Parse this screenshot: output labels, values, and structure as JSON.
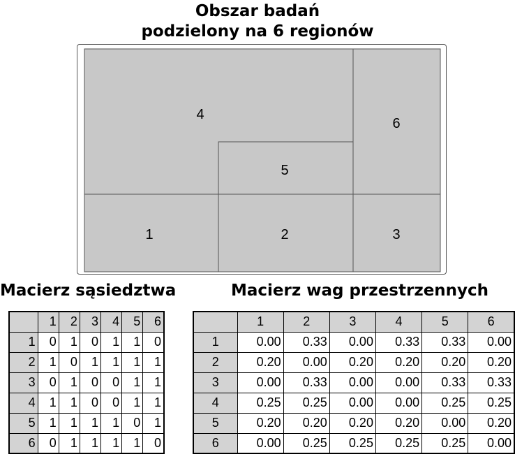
{
  "title": {
    "line1": "Obszar badań",
    "line2": "podzielony na 6 regionów"
  },
  "regions": [
    {
      "id": "1",
      "label": "1",
      "color": "#c8c8c8"
    },
    {
      "id": "2",
      "label": "2",
      "color": "#c8c8c8"
    },
    {
      "id": "3",
      "label": "3",
      "color": "#c8c8c8"
    },
    {
      "id": "4",
      "label": "4",
      "color": "#c8c8c8"
    },
    {
      "id": "5",
      "label": "5",
      "color": "#c8c8c8"
    },
    {
      "id": "6",
      "label": "6",
      "color": "#c8c8c8"
    }
  ],
  "adjacency": {
    "title": "Macierz sąsiedztwa",
    "headers": [
      "1",
      "2",
      "3",
      "4",
      "5",
      "6"
    ],
    "rows": [
      {
        "label": "1",
        "values": [
          "0",
          "1",
          "0",
          "1",
          "1",
          "0"
        ]
      },
      {
        "label": "2",
        "values": [
          "1",
          "0",
          "1",
          "1",
          "1",
          "1"
        ]
      },
      {
        "label": "3",
        "values": [
          "0",
          "1",
          "0",
          "0",
          "1",
          "1"
        ]
      },
      {
        "label": "4",
        "values": [
          "1",
          "1",
          "0",
          "0",
          "1",
          "1"
        ]
      },
      {
        "label": "5",
        "values": [
          "1",
          "1",
          "1",
          "1",
          "0",
          "1"
        ]
      },
      {
        "label": "6",
        "values": [
          "0",
          "1",
          "1",
          "1",
          "1",
          "0"
        ]
      }
    ]
  },
  "weights": {
    "title": "Macierz wag przestrzennych",
    "headers": [
      "1",
      "2",
      "3",
      "4",
      "5",
      "6"
    ],
    "rows": [
      {
        "label": "1",
        "values": [
          "0.00",
          "0.33",
          "0.00",
          "0.33",
          "0.33",
          "0.00"
        ]
      },
      {
        "label": "2",
        "values": [
          "0.20",
          "0.00",
          "0.20",
          "0.20",
          "0.20",
          "0.20"
        ]
      },
      {
        "label": "3",
        "values": [
          "0.00",
          "0.33",
          "0.00",
          "0.00",
          "0.33",
          "0.33"
        ]
      },
      {
        "label": "4",
        "values": [
          "0.25",
          "0.25",
          "0.00",
          "0.00",
          "0.25",
          "0.25"
        ]
      },
      {
        "label": "5",
        "values": [
          "0.20",
          "0.20",
          "0.20",
          "0.20",
          "0.00",
          "0.20"
        ]
      },
      {
        "label": "6",
        "values": [
          "0.00",
          "0.25",
          "0.25",
          "0.25",
          "0.25",
          "0.00"
        ]
      }
    ]
  },
  "colors": {
    "region_fill": "#c8c8c8",
    "region_border": "#555555",
    "table_header_bg": "#d3d3d3"
  }
}
